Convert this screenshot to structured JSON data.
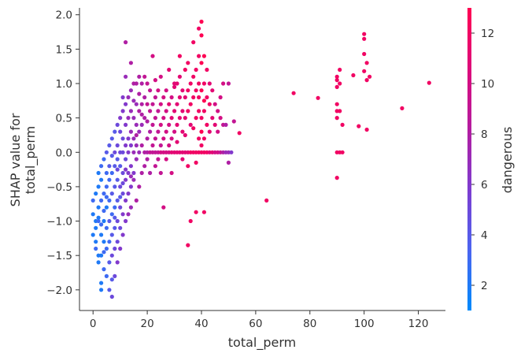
{
  "chart_data": {
    "type": "scatter",
    "xlabel": "total_perm",
    "ylabel_lines": [
      "SHAP value for",
      "total_perm"
    ],
    "xlim": [
      -5,
      130
    ],
    "ylim": [
      -2.3,
      2.1
    ],
    "x_ticks": [
      0,
      20,
      40,
      60,
      80,
      100,
      120
    ],
    "x_tick_labels": [
      "0",
      "20",
      "40",
      "60",
      "80",
      "100",
      "120"
    ],
    "y_ticks": [
      2.0,
      1.5,
      1.0,
      0.5,
      0.0,
      -0.5,
      -1.0,
      -1.5,
      -2.0
    ],
    "y_tick_labels": [
      "2.0",
      "1.5",
      "1.0",
      "0.5",
      "0.0",
      "−0.5",
      "−1.0",
      "−1.5",
      "−2.0"
    ],
    "grid": false,
    "colorbar": {
      "label": "dangerous",
      "range": [
        1,
        13
      ],
      "ticks": [
        2,
        4,
        6,
        8,
        10,
        12
      ],
      "tick_labels": [
        "2",
        "4",
        "6",
        "8",
        "10",
        "12"
      ],
      "colors": [
        "#008afb",
        "#4b64f0",
        "#7d3cd0",
        "#b41ca0",
        "#dd0a7a",
        "#ff0052"
      ]
    },
    "points": [
      [
        0,
        -0.9,
        2
      ],
      [
        0,
        -1.2,
        2
      ],
      [
        0,
        -0.7,
        3
      ],
      [
        1,
        -0.6,
        2
      ],
      [
        1,
        -1.0,
        2
      ],
      [
        1,
        -1.3,
        2
      ],
      [
        1,
        -1.4,
        3
      ],
      [
        1,
        -1.1,
        2
      ],
      [
        2,
        -0.5,
        2
      ],
      [
        2,
        -0.8,
        2
      ],
      [
        2,
        -1.6,
        2
      ],
      [
        2,
        -1.0,
        3
      ],
      [
        2,
        -0.3,
        2
      ],
      [
        2,
        -1.5,
        2
      ],
      [
        2,
        -0.95,
        2
      ],
      [
        3,
        -0.4,
        2
      ],
      [
        3,
        -0.7,
        3
      ],
      [
        3,
        -1.2,
        2
      ],
      [
        3,
        -1.5,
        2
      ],
      [
        3,
        -1.9,
        2
      ],
      [
        3,
        -2.0,
        2
      ],
      [
        3,
        -0.2,
        3
      ],
      [
        3,
        -1.05,
        3
      ],
      [
        4,
        -0.6,
        3
      ],
      [
        4,
        -1.0,
        2
      ],
      [
        4,
        -1.3,
        2
      ],
      [
        4,
        -0.1,
        3
      ],
      [
        4,
        -1.7,
        3
      ],
      [
        4,
        -0.85,
        3
      ],
      [
        4,
        -1.45,
        3
      ],
      [
        5,
        -0.5,
        3
      ],
      [
        5,
        -0.8,
        2
      ],
      [
        5,
        -1.1,
        3
      ],
      [
        5,
        -1.4,
        3
      ],
      [
        5,
        -0.3,
        3
      ],
      [
        5,
        0.0,
        4
      ],
      [
        5,
        -1.8,
        3
      ],
      [
        5,
        -0.65,
        3
      ],
      [
        6,
        -0.4,
        3
      ],
      [
        6,
        -0.7,
        3
      ],
      [
        6,
        -1.0,
        4
      ],
      [
        6,
        -1.3,
        3
      ],
      [
        6,
        -0.2,
        4
      ],
      [
        6,
        -1.6,
        4
      ],
      [
        6,
        -2.0,
        4
      ],
      [
        6,
        0.1,
        4
      ],
      [
        7,
        -0.3,
        3
      ],
      [
        7,
        -0.6,
        4
      ],
      [
        7,
        -0.9,
        3
      ],
      [
        7,
        -1.2,
        4
      ],
      [
        7,
        -1.5,
        5
      ],
      [
        7,
        -2.1,
        5
      ],
      [
        7,
        -0.05,
        4
      ],
      [
        7,
        0.2,
        4
      ],
      [
        7,
        -1.85,
        4
      ],
      [
        8,
        -0.2,
        4
      ],
      [
        8,
        -0.5,
        4
      ],
      [
        8,
        -0.8,
        3
      ],
      [
        8,
        -1.1,
        4
      ],
      [
        8,
        -1.4,
        5
      ],
      [
        8,
        -1.8,
        5
      ],
      [
        8,
        0.0,
        5
      ],
      [
        8,
        0.3,
        4
      ],
      [
        8,
        -0.95,
        4
      ],
      [
        9,
        -0.1,
        4
      ],
      [
        9,
        -0.4,
        4
      ],
      [
        9,
        -0.7,
        4
      ],
      [
        9,
        -1.0,
        5
      ],
      [
        9,
        -1.3,
        5
      ],
      [
        9,
        0.1,
        5
      ],
      [
        9,
        0.4,
        5
      ],
      [
        9,
        -1.6,
        6
      ],
      [
        9,
        -0.25,
        5
      ],
      [
        10,
        -0.2,
        4
      ],
      [
        10,
        -0.5,
        5
      ],
      [
        10,
        -0.8,
        5
      ],
      [
        10,
        -1.1,
        5
      ],
      [
        10,
        0.0,
        5
      ],
      [
        10,
        0.3,
        5
      ],
      [
        10,
        0.5,
        6
      ],
      [
        10,
        -1.4,
        6
      ],
      [
        10,
        -0.65,
        4
      ],
      [
        11,
        0.0,
        5
      ],
      [
        11,
        -0.3,
        5
      ],
      [
        11,
        -0.6,
        5
      ],
      [
        11,
        -0.9,
        6
      ],
      [
        11,
        0.2,
        5
      ],
      [
        11,
        0.6,
        6
      ],
      [
        11,
        0.8,
        6
      ],
      [
        11,
        -1.2,
        6
      ],
      [
        11,
        -0.45,
        5
      ],
      [
        12,
        -0.1,
        5
      ],
      [
        12,
        -0.4,
        6
      ],
      [
        12,
        -0.7,
        6
      ],
      [
        12,
        0.1,
        6
      ],
      [
        12,
        0.4,
        6
      ],
      [
        12,
        0.7,
        6
      ],
      [
        12,
        1.1,
        7
      ],
      [
        12,
        1.6,
        8
      ],
      [
        12,
        -1.0,
        6
      ],
      [
        12,
        -0.25,
        6
      ],
      [
        13,
        0.0,
        6
      ],
      [
        13,
        -0.3,
        6
      ],
      [
        13,
        -0.6,
        6
      ],
      [
        13,
        0.2,
        6
      ],
      [
        13,
        0.5,
        7
      ],
      [
        13,
        0.8,
        7
      ],
      [
        13,
        -0.9,
        7
      ],
      [
        14,
        0.1,
        6
      ],
      [
        14,
        -0.2,
        6
      ],
      [
        14,
        -0.5,
        6
      ],
      [
        14,
        0.3,
        7
      ],
      [
        14,
        0.6,
        7
      ],
      [
        14,
        0.9,
        7
      ],
      [
        14,
        1.3,
        8
      ],
      [
        14,
        -0.8,
        7
      ],
      [
        14,
        -0.35,
        7
      ],
      [
        15,
        0.0,
        7
      ],
      [
        15,
        -0.3,
        6
      ],
      [
        15,
        0.2,
        7
      ],
      [
        15,
        0.5,
        7
      ],
      [
        15,
        0.75,
        7
      ],
      [
        15,
        1.0,
        8
      ],
      [
        15,
        -0.4,
        7
      ],
      [
        16,
        0.1,
        7
      ],
      [
        16,
        -0.1,
        7
      ],
      [
        16,
        0.4,
        7
      ],
      [
        16,
        0.7,
        7
      ],
      [
        16,
        1.0,
        8
      ],
      [
        16,
        -0.7,
        8
      ],
      [
        16,
        0.25,
        8
      ],
      [
        17,
        0.0,
        7
      ],
      [
        17,
        0.3,
        7
      ],
      [
        17,
        0.6,
        8
      ],
      [
        17,
        0.85,
        8
      ],
      [
        17,
        1.1,
        8
      ],
      [
        17,
        -0.5,
        8
      ],
      [
        18,
        0.1,
        8
      ],
      [
        18,
        0.4,
        7
      ],
      [
        18,
        0.7,
        8
      ],
      [
        18,
        1.0,
        8
      ],
      [
        18,
        -0.3,
        8
      ],
      [
        18,
        0.55,
        8
      ],
      [
        19,
        0.0,
        8
      ],
      [
        19,
        0.5,
        8
      ],
      [
        19,
        0.8,
        8
      ],
      [
        19,
        1.1,
        9
      ],
      [
        19,
        -0.2,
        8
      ],
      [
        20,
        0.2,
        8
      ],
      [
        20,
        0.45,
        8
      ],
      [
        20,
        0.7,
        9
      ],
      [
        20,
        1.0,
        9
      ],
      [
        20,
        0.0,
        8
      ],
      [
        20,
        -0.1,
        8
      ],
      [
        21,
        0.3,
        8
      ],
      [
        21,
        0.6,
        9
      ],
      [
        21,
        0.9,
        9
      ],
      [
        21,
        0.0,
        9
      ],
      [
        21,
        -0.3,
        8
      ],
      [
        22,
        0.1,
        9
      ],
      [
        22,
        0.4,
        9
      ],
      [
        22,
        0.7,
        9
      ],
      [
        22,
        0.0,
        9
      ],
      [
        22,
        1.4,
        10
      ],
      [
        23,
        0.2,
        9
      ],
      [
        23,
        0.5,
        9
      ],
      [
        23,
        0.8,
        9
      ],
      [
        23,
        0.0,
        9
      ],
      [
        23,
        -0.2,
        9
      ],
      [
        23,
        1.05,
        10
      ],
      [
        24,
        0.3,
        9
      ],
      [
        24,
        0.6,
        9
      ],
      [
        24,
        0.0,
        9
      ],
      [
        24,
        0.9,
        10
      ],
      [
        24,
        -0.1,
        9
      ],
      [
        25,
        0.1,
        9
      ],
      [
        25,
        0.4,
        10
      ],
      [
        25,
        0.7,
        10
      ],
      [
        25,
        1.1,
        10
      ],
      [
        25,
        0.0,
        10
      ],
      [
        25,
        -0.3,
        9
      ],
      [
        26,
        0.2,
        10
      ],
      [
        26,
        0.5,
        10
      ],
      [
        26,
        0.8,
        10
      ],
      [
        26,
        0.0,
        10
      ],
      [
        26,
        -0.8,
        10
      ],
      [
        27,
        0.3,
        10
      ],
      [
        27,
        0.6,
        10
      ],
      [
        27,
        0.9,
        10
      ],
      [
        27,
        0.0,
        10
      ],
      [
        27,
        -0.1,
        10
      ],
      [
        28,
        0.1,
        10
      ],
      [
        28,
        0.4,
        10
      ],
      [
        28,
        0.7,
        11
      ],
      [
        28,
        1.2,
        11
      ],
      [
        28,
        0.0,
        10
      ],
      [
        29,
        0.2,
        10
      ],
      [
        29,
        0.5,
        11
      ],
      [
        29,
        0.8,
        10
      ],
      [
        29,
        0.0,
        11
      ],
      [
        29,
        -0.3,
        10
      ],
      [
        30,
        0.3,
        10
      ],
      [
        30,
        0.6,
        11
      ],
      [
        30,
        1.0,
        11
      ],
      [
        30,
        0.0,
        11
      ],
      [
        30,
        0.95,
        11
      ],
      [
        31,
        0.4,
        11
      ],
      [
        31,
        0.7,
        11
      ],
      [
        31,
        1.0,
        11
      ],
      [
        31,
        0.0,
        11
      ],
      [
        31,
        0.15,
        11
      ],
      [
        32,
        0.5,
        11
      ],
      [
        32,
        0.8,
        11
      ],
      [
        32,
        1.1,
        11
      ],
      [
        32,
        0.0,
        11
      ],
      [
        32,
        1.4,
        12
      ],
      [
        33,
        0.3,
        11
      ],
      [
        33,
        0.6,
        11
      ],
      [
        33,
        0.9,
        11
      ],
      [
        33,
        0.0,
        11
      ],
      [
        33,
        -0.1,
        11
      ],
      [
        34,
        0.5,
        11
      ],
      [
        34,
        0.8,
        11
      ],
      [
        34,
        1.2,
        12
      ],
      [
        34,
        0.0,
        11
      ],
      [
        34,
        0.25,
        11
      ],
      [
        35,
        0.6,
        12
      ],
      [
        35,
        0.9,
        12
      ],
      [
        35,
        1.3,
        12
      ],
      [
        35,
        0.0,
        11
      ],
      [
        35,
        -0.2,
        12
      ],
      [
        36,
        0.4,
        11
      ],
      [
        36,
        0.7,
        12
      ],
      [
        36,
        1.0,
        12
      ],
      [
        36,
        0.0,
        12
      ],
      [
        36,
        -1.0,
        12
      ],
      [
        37,
        0.8,
        12
      ],
      [
        37,
        1.1,
        12
      ],
      [
        37,
        1.6,
        12
      ],
      [
        37,
        0.0,
        12
      ],
      [
        37,
        0.35,
        12
      ],
      [
        38,
        0.5,
        12
      ],
      [
        38,
        0.9,
        12
      ],
      [
        38,
        1.2,
        12
      ],
      [
        38,
        0.0,
        12
      ],
      [
        38,
        -0.15,
        12
      ],
      [
        39,
        0.2,
        12
      ],
      [
        39,
        0.6,
        12
      ],
      [
        39,
        1.0,
        12
      ],
      [
        39,
        1.4,
        12
      ],
      [
        39,
        1.8,
        12
      ],
      [
        39,
        0.0,
        12
      ],
      [
        39,
        0.8,
        12
      ],
      [
        40,
        0.1,
        12
      ],
      [
        40,
        0.5,
        12
      ],
      [
        40,
        0.9,
        13
      ],
      [
        40,
        1.3,
        13
      ],
      [
        40,
        1.7,
        13
      ],
      [
        40,
        1.9,
        13
      ],
      [
        40,
        0.0,
        12
      ],
      [
        40,
        0.3,
        13
      ],
      [
        41,
        0.2,
        12
      ],
      [
        41,
        0.6,
        12
      ],
      [
        41,
        1.0,
        12
      ],
      [
        41,
        1.4,
        13
      ],
      [
        41,
        0.0,
        12
      ],
      [
        41,
        0.75,
        13
      ],
      [
        42,
        0.4,
        12
      ],
      [
        42,
        0.8,
        12
      ],
      [
        42,
        1.2,
        12
      ],
      [
        42,
        0.0,
        12
      ],
      [
        43,
        0.3,
        11
      ],
      [
        43,
        0.7,
        12
      ],
      [
        43,
        1.0,
        11
      ],
      [
        43,
        0.0,
        11
      ],
      [
        44,
        0.5,
        11
      ],
      [
        44,
        0.9,
        11
      ],
      [
        44,
        0.0,
        11
      ],
      [
        45,
        0.4,
        11
      ],
      [
        45,
        0.7,
        10
      ],
      [
        45,
        0.0,
        10
      ],
      [
        46,
        0.6,
        10
      ],
      [
        46,
        0.3,
        10
      ],
      [
        46,
        0.0,
        10
      ],
      [
        47,
        0.8,
        10
      ],
      [
        47,
        0.5,
        10
      ],
      [
        47,
        0.0,
        9
      ],
      [
        48,
        0.4,
        9
      ],
      [
        48,
        1.0,
        10
      ],
      [
        48,
        0.0,
        8
      ],
      [
        49,
        0.4,
        8
      ],
      [
        49,
        0.0,
        7
      ],
      [
        50,
        0.0,
        7
      ],
      [
        50,
        -0.15,
        8
      ],
      [
        50,
        1.0,
        9
      ],
      [
        51,
        0.0,
        6
      ],
      [
        52,
        0.45,
        9
      ],
      [
        54,
        0.28,
        12
      ],
      [
        35,
        -1.35,
        12
      ],
      [
        41,
        -0.87,
        12
      ],
      [
        38,
        -0.87,
        12
      ],
      [
        64,
        -0.7,
        12
      ],
      [
        74,
        0.86,
        12
      ],
      [
        83,
        0.79,
        12
      ],
      [
        90,
        1.1,
        12
      ],
      [
        90,
        1.05,
        12
      ],
      [
        90,
        0.95,
        12
      ],
      [
        90,
        0.7,
        12
      ],
      [
        90,
        0.6,
        12
      ],
      [
        90,
        0.5,
        12
      ],
      [
        90,
        0.0,
        12
      ],
      [
        90,
        -0.37,
        12
      ],
      [
        91,
        1.2,
        12
      ],
      [
        91,
        1.0,
        12
      ],
      [
        91,
        0.6,
        12
      ],
      [
        91,
        0.0,
        12
      ],
      [
        92,
        0.4,
        12
      ],
      [
        92,
        0.0,
        12
      ],
      [
        96,
        1.12,
        12
      ],
      [
        98,
        0.38,
        12
      ],
      [
        100,
        1.72,
        12
      ],
      [
        100,
        1.65,
        12
      ],
      [
        100,
        1.43,
        12
      ],
      [
        100,
        1.18,
        12
      ],
      [
        101,
        1.3,
        12
      ],
      [
        101,
        1.05,
        12
      ],
      [
        101,
        0.33,
        12
      ],
      [
        102,
        1.1,
        12
      ],
      [
        114,
        0.64,
        12
      ],
      [
        124,
        1.01,
        12
      ]
    ]
  }
}
